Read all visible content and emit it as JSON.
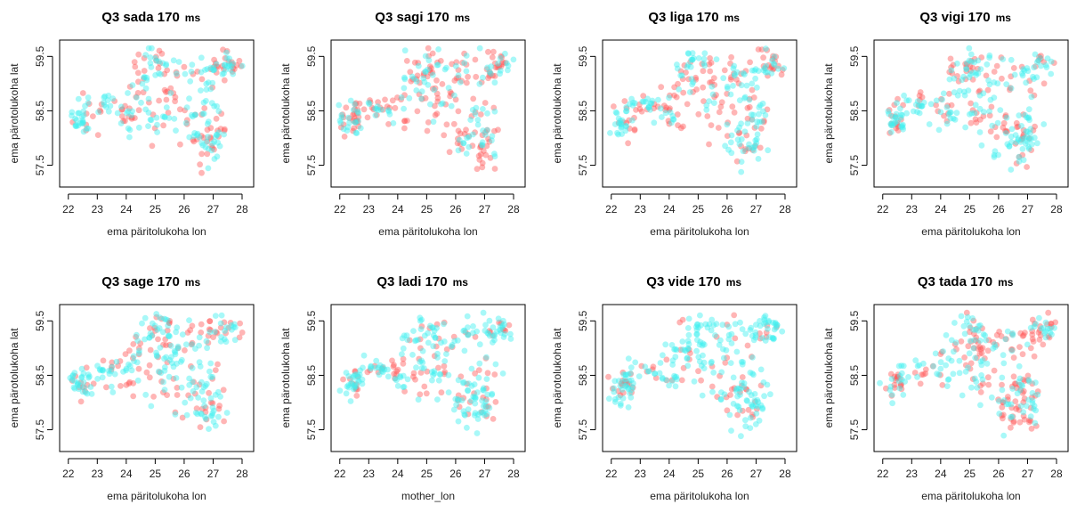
{
  "colors": {
    "series_a": "#ff5a5a",
    "series_b": "#3ff0f0"
  },
  "chart_data": [
    {
      "type": "scatter",
      "title": "Q3 sada 170",
      "title_unit": "ms",
      "xlabel": "ema päritolukoha lon",
      "ylabel": "ema pärotolukoha lat",
      "xlim": [
        21.7,
        28.4
      ],
      "ylim": [
        57.1,
        59.8
      ],
      "xticks": [
        "22",
        "23",
        "24",
        "25",
        "26",
        "27",
        "28"
      ],
      "yticks": [
        "57.5",
        "58.5",
        "59.5"
      ],
      "series": [
        {
          "color": "#ff5a5a",
          "alpha": 0.45,
          "seed": 11,
          "n": 120
        },
        {
          "color": "#3ff0f0",
          "alpha": 0.45,
          "seed": 12,
          "n": 170
        }
      ]
    },
    {
      "type": "scatter",
      "title": "Q3 sagi 170",
      "title_unit": "ms",
      "xlabel": "ema päritolukoha lon",
      "ylabel": "ema pärotolukoha lat",
      "xlim": [
        21.7,
        28.4
      ],
      "ylim": [
        57.1,
        59.8
      ],
      "xticks": [
        "22",
        "23",
        "24",
        "25",
        "26",
        "27",
        "28"
      ],
      "yticks": [
        "57.5",
        "58.5",
        "59.5"
      ],
      "series": [
        {
          "color": "#ff5a5a",
          "alpha": 0.45,
          "seed": 21,
          "n": 170
        },
        {
          "color": "#3ff0f0",
          "alpha": 0.45,
          "seed": 22,
          "n": 120
        }
      ]
    },
    {
      "type": "scatter",
      "title": "Q3 liga 170",
      "title_unit": "ms",
      "xlabel": "ema päritolukoha lon",
      "ylabel": "ema pärotolukoha lat",
      "xlim": [
        21.7,
        28.4
      ],
      "ylim": [
        57.1,
        59.8
      ],
      "xticks": [
        "22",
        "23",
        "24",
        "25",
        "26",
        "27",
        "28"
      ],
      "yticks": [
        "57.5",
        "58.5",
        "59.5"
      ],
      "series": [
        {
          "color": "#ff5a5a",
          "alpha": 0.45,
          "seed": 31,
          "n": 130
        },
        {
          "color": "#3ff0f0",
          "alpha": 0.45,
          "seed": 32,
          "n": 160
        }
      ]
    },
    {
      "type": "scatter",
      "title": "Q3 vigi 170",
      "title_unit": "ms",
      "xlabel": "ema päritolukoha lon",
      "ylabel": "ema pärotolukoha lat",
      "xlim": [
        21.7,
        28.4
      ],
      "ylim": [
        57.1,
        59.8
      ],
      "xticks": [
        "22",
        "23",
        "24",
        "25",
        "26",
        "27",
        "28"
      ],
      "yticks": [
        "57.5",
        "58.5",
        "59.5"
      ],
      "series": [
        {
          "color": "#ff5a5a",
          "alpha": 0.45,
          "seed": 41,
          "n": 110
        },
        {
          "color": "#3ff0f0",
          "alpha": 0.45,
          "seed": 42,
          "n": 180
        }
      ]
    },
    {
      "type": "scatter",
      "title": "Q3 sage 170",
      "title_unit": "ms",
      "xlabel": "ema päritolukoha lon",
      "ylabel": "ema pärotolukoha lat",
      "xlim": [
        21.7,
        28.4
      ],
      "ylim": [
        57.1,
        59.8
      ],
      "xticks": [
        "22",
        "23",
        "24",
        "25",
        "26",
        "27",
        "28"
      ],
      "yticks": [
        "57.5",
        "58.5",
        "59.5"
      ],
      "series": [
        {
          "color": "#ff5a5a",
          "alpha": 0.45,
          "seed": 51,
          "n": 110
        },
        {
          "color": "#3ff0f0",
          "alpha": 0.45,
          "seed": 52,
          "n": 180
        }
      ]
    },
    {
      "type": "scatter",
      "title": "Q3 ladi 170",
      "title_unit": "ms",
      "xlabel": "mother_lon",
      "ylabel": "ema pärotolukoha lat",
      "xlim": [
        21.7,
        28.4
      ],
      "ylim": [
        57.1,
        59.8
      ],
      "xticks": [
        "22",
        "23",
        "24",
        "25",
        "26",
        "27",
        "28"
      ],
      "yticks": [
        "57.5",
        "58.5",
        "59.5"
      ],
      "series": [
        {
          "color": "#ff5a5a",
          "alpha": 0.45,
          "seed": 61,
          "n": 90
        },
        {
          "color": "#3ff0f0",
          "alpha": 0.45,
          "seed": 62,
          "n": 200
        }
      ]
    },
    {
      "type": "scatter",
      "title": "Q3 vide 170",
      "title_unit": "ms",
      "xlabel": "ema päritolukoha lon",
      "ylabel": "ema pärotolukoha lat",
      "xlim": [
        21.7,
        28.4
      ],
      "ylim": [
        57.1,
        59.8
      ],
      "xticks": [
        "22",
        "23",
        "24",
        "25",
        "26",
        "27",
        "28"
      ],
      "yticks": [
        "57.5",
        "58.5",
        "59.5"
      ],
      "series": [
        {
          "color": "#ff5a5a",
          "alpha": 0.45,
          "seed": 71,
          "n": 70
        },
        {
          "color": "#3ff0f0",
          "alpha": 0.45,
          "seed": 72,
          "n": 220
        }
      ]
    },
    {
      "type": "scatter",
      "title": "Q3 tada 170",
      "title_unit": "ms",
      "xlabel": "ema päritolukoha lon",
      "ylabel": "ema pärotolukoha lat",
      "xlim": [
        21.7,
        28.4
      ],
      "ylim": [
        57.1,
        59.8
      ],
      "xticks": [
        "22",
        "23",
        "24",
        "25",
        "26",
        "27",
        "28"
      ],
      "yticks": [
        "57.5",
        "58.5",
        "59.5"
      ],
      "series": [
        {
          "color": "#ff5a5a",
          "alpha": 0.45,
          "seed": 81,
          "n": 150
        },
        {
          "color": "#3ff0f0",
          "alpha": 0.45,
          "seed": 82,
          "n": 140
        }
      ]
    }
  ]
}
